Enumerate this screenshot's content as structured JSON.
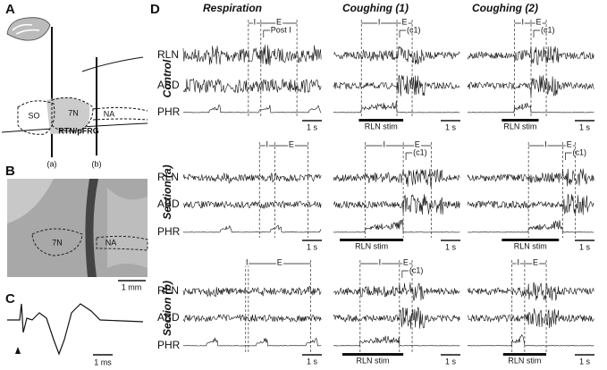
{
  "figure": {
    "panel_a": {
      "letter": "A",
      "so": "SO",
      "n7": "7N",
      "na": "NA",
      "region": "RTN/pFRG",
      "cut_a": "(a)",
      "cut_b": "(b)"
    },
    "panel_b": {
      "letter": "B",
      "n7": "7N",
      "na": "NA",
      "scale": "1 mm"
    },
    "panel_c": {
      "letter": "C",
      "scale": "1 ms"
    },
    "panel_d": {
      "letter": "D",
      "columns": [
        "Respiration",
        "Coughing (1)",
        "Coughing (2)"
      ],
      "rows": [
        {
          "label": "Control",
          "channels": [
            "RLN",
            "ABD",
            "PHR"
          ],
          "cells": [
            {
              "inspiration": "I",
              "expiration": "E",
              "note": "Post I",
              "scale": "1 s"
            },
            {
              "inspiration": "I",
              "expiration": "E",
              "note": "(c1)",
              "stimulus": "RLN stim",
              "scale": "1 s"
            },
            {
              "inspiration": "I",
              "expiration": "E",
              "note": "(c1)",
              "stimulus": "RLN stim",
              "scale": "1 s"
            }
          ]
        },
        {
          "label": "Section (a)",
          "channels": [
            "RLN",
            "ABD",
            "PHR"
          ],
          "cells": [
            {
              "inspiration": "I",
              "expiration": "E",
              "scale": "1 s"
            },
            {
              "inspiration": "I",
              "expiration": "E",
              "note": "(c1)",
              "stimulus": "RLN stim",
              "scale": "1 s"
            },
            {
              "inspiration": "I",
              "expiration": "E",
              "note": "(c1)",
              "stimulus": "RLN stim",
              "scale": "1 s"
            }
          ]
        },
        {
          "label": "Section (b)",
          "channels": [
            "RLN",
            "ABD",
            "PHR"
          ],
          "cells": [
            {
              "inspiration": "I",
              "expiration": "E",
              "scale": "1 s"
            },
            {
              "inspiration": "I",
              "expiration": "E",
              "note": "(c1)",
              "stimulus": "RLN stim",
              "scale": "1 s"
            },
            {
              "inspiration": "I",
              "expiration": "E",
              "stimulus": "RLN stim",
              "scale": "1 s"
            }
          ]
        }
      ]
    }
  }
}
